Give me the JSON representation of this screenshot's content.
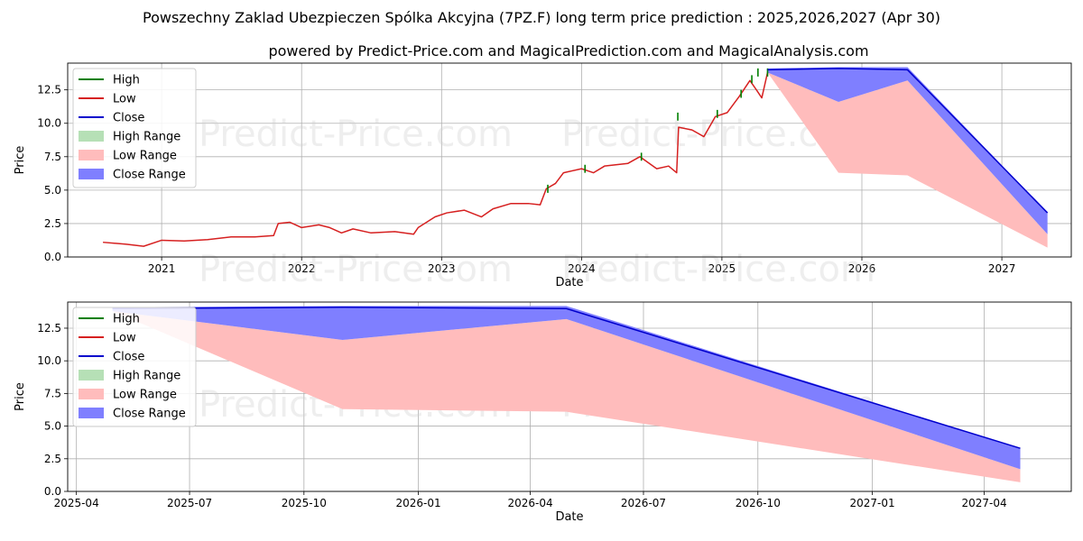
{
  "title": "Powszechny Zaklad Ubezpieczen Spólka Akcyjna (7PZ.F) long term price prediction : 2025,2026,2027 (Apr 30)",
  "subtitle": "powered by Predict-Price.com and MagicalPrediction.com and MagicalAnalysis.com",
  "watermark": "Predict-Price.com",
  "colors": {
    "high": "#007f00",
    "low": "#d62020",
    "close": "#0000cc",
    "high_range": "#b6e0b6",
    "low_range": "#ffbcbc",
    "close_range": "#7f7fff",
    "grid": "#b0b0b0"
  },
  "legend": {
    "items": [
      "High",
      "Low",
      "Close",
      "High Range",
      "Low Range",
      "Close Range"
    ],
    "placement": "top-left"
  },
  "chart_data": [
    {
      "type": "line",
      "xlabel": "Date",
      "ylabel": "Price",
      "xlim": [
        "2020-05-01",
        "2027-07-01"
      ],
      "ylim": [
        0,
        14.5
      ],
      "grid": true,
      "x_ticks": [
        "2021",
        "2022",
        "2023",
        "2024",
        "2025",
        "2026",
        "2027"
      ],
      "y_ticks": [
        "0.0",
        "2.5",
        "5.0",
        "7.5",
        "10.0",
        "12.5"
      ],
      "series": [
        {
          "name": "Low",
          "points": [
            [
              "2020-08-01",
              1.1
            ],
            [
              "2020-10-01",
              0.95
            ],
            [
              "2020-11-15",
              0.8
            ],
            [
              "2021-01-01",
              1.25
            ],
            [
              "2021-03-01",
              1.2
            ],
            [
              "2021-05-01",
              1.3
            ],
            [
              "2021-07-01",
              1.5
            ],
            [
              "2021-09-01",
              1.5
            ],
            [
              "2021-10-20",
              1.6
            ],
            [
              "2021-11-01",
              2.5
            ],
            [
              "2021-12-01",
              2.6
            ],
            [
              "2022-01-01",
              2.2
            ],
            [
              "2022-02-15",
              2.4
            ],
            [
              "2022-03-15",
              2.2
            ],
            [
              "2022-04-15",
              1.8
            ],
            [
              "2022-05-15",
              2.1
            ],
            [
              "2022-07-01",
              1.8
            ],
            [
              "2022-09-01",
              1.9
            ],
            [
              "2022-10-20",
              1.7
            ],
            [
              "2022-11-01",
              2.2
            ],
            [
              "2022-12-15",
              3.0
            ],
            [
              "2023-01-15",
              3.3
            ],
            [
              "2023-03-01",
              3.5
            ],
            [
              "2023-04-15",
              3.0
            ],
            [
              "2023-05-15",
              3.6
            ],
            [
              "2023-07-01",
              4.0
            ],
            [
              "2023-08-15",
              4.0
            ],
            [
              "2023-09-15",
              3.9
            ],
            [
              "2023-10-01",
              5.1
            ],
            [
              "2023-10-25",
              5.5
            ],
            [
              "2023-11-15",
              6.3
            ],
            [
              "2024-01-01",
              6.6
            ],
            [
              "2024-02-01",
              6.3
            ],
            [
              "2024-03-01",
              6.8
            ],
            [
              "2024-05-01",
              7.0
            ],
            [
              "2024-06-01",
              7.5
            ],
            [
              "2024-07-15",
              6.6
            ],
            [
              "2024-08-15",
              6.8
            ],
            [
              "2024-09-05",
              6.3
            ],
            [
              "2024-09-10",
              9.7
            ],
            [
              "2024-10-15",
              9.5
            ],
            [
              "2024-11-15",
              9.0
            ],
            [
              "2024-12-15",
              10.5
            ],
            [
              "2025-01-15",
              10.8
            ],
            [
              "2025-02-15",
              12.0
            ],
            [
              "2025-03-15",
              13.2
            ],
            [
              "2025-04-01",
              12.5
            ],
            [
              "2025-04-15",
              11.9
            ],
            [
              "2025-04-30",
              13.8
            ]
          ]
        },
        {
          "name": "High",
          "points": [
            [
              "2023-10-05",
              5.4
            ],
            [
              "2024-01-10",
              6.9
            ],
            [
              "2024-06-05",
              7.8
            ],
            [
              "2024-09-08",
              10.8
            ],
            [
              "2024-12-20",
              11.0
            ],
            [
              "2025-02-20",
              12.5
            ],
            [
              "2025-03-20",
              13.6
            ],
            [
              "2025-04-05",
              14.1
            ],
            [
              "2025-04-30",
              14.1
            ]
          ]
        },
        {
          "name": "Close",
          "points": [
            [
              "2025-04-30",
              14.0
            ],
            [
              "2025-11-01",
              14.1
            ],
            [
              "2026-04-30",
              14.0
            ],
            [
              "2027-04-30",
              3.3
            ]
          ]
        }
      ],
      "ranges": [
        {
          "name": "Low Range",
          "upper": [
            [
              "2025-04-30",
              13.8
            ],
            [
              "2025-11-01",
              11.6
            ],
            [
              "2026-04-30",
              13.2
            ],
            [
              "2027-04-30",
              1.7
            ]
          ],
          "lower": [
            [
              "2025-04-30",
              13.8
            ],
            [
              "2025-11-01",
              6.3
            ],
            [
              "2026-04-30",
              6.1
            ],
            [
              "2027-04-30",
              0.7
            ]
          ]
        },
        {
          "name": "Close Range",
          "upper": [
            [
              "2025-04-30",
              14.1
            ],
            [
              "2025-11-01",
              14.2
            ],
            [
              "2026-04-30",
              14.2
            ],
            [
              "2027-04-30",
              3.3
            ]
          ],
          "lower": [
            [
              "2025-04-30",
              13.8
            ],
            [
              "2025-11-01",
              11.6
            ],
            [
              "2026-04-30",
              13.2
            ],
            [
              "2027-04-30",
              1.7
            ]
          ]
        }
      ]
    },
    {
      "type": "line",
      "xlabel": "Date",
      "ylabel": "Price",
      "xlim": [
        "2025-03-25",
        "2027-06-10"
      ],
      "ylim": [
        0,
        14.5
      ],
      "grid": true,
      "x_ticks": [
        "2025-04",
        "2025-07",
        "2025-10",
        "2026-01",
        "2026-04",
        "2026-07",
        "2026-10",
        "2027-01",
        "2027-04"
      ],
      "y_ticks": [
        "0.0",
        "2.5",
        "5.0",
        "7.5",
        "10.0",
        "12.5"
      ],
      "series": [
        {
          "name": "Close",
          "points": [
            [
              "2025-04-30",
              14.0
            ],
            [
              "2025-11-01",
              14.1
            ],
            [
              "2026-04-30",
              14.0
            ],
            [
              "2027-04-30",
              3.3
            ]
          ]
        }
      ],
      "ranges": [
        {
          "name": "Low Range",
          "upper": [
            [
              "2025-04-30",
              13.8
            ],
            [
              "2025-11-01",
              11.6
            ],
            [
              "2026-04-30",
              13.2
            ],
            [
              "2027-04-30",
              1.7
            ]
          ],
          "lower": [
            [
              "2025-04-30",
              13.8
            ],
            [
              "2025-11-01",
              6.3
            ],
            [
              "2026-04-30",
              6.1
            ],
            [
              "2027-04-30",
              0.7
            ]
          ]
        },
        {
          "name": "Close Range",
          "upper": [
            [
              "2025-04-30",
              14.1
            ],
            [
              "2025-11-01",
              14.2
            ],
            [
              "2026-04-30",
              14.2
            ],
            [
              "2027-04-30",
              3.3
            ]
          ],
          "lower": [
            [
              "2025-04-30",
              13.8
            ],
            [
              "2025-11-01",
              11.6
            ],
            [
              "2026-04-30",
              13.2
            ],
            [
              "2027-04-30",
              1.7
            ]
          ]
        }
      ]
    }
  ]
}
